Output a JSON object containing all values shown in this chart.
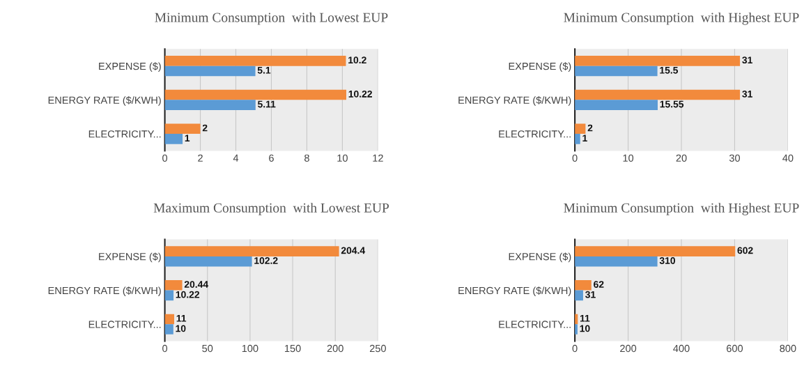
{
  "chart_data": [
    {
      "type": "bar",
      "title": "Minimum Consumption  with Lowest EUP",
      "orientation": "horizontal",
      "categories": [
        "EXPENSE ($)",
        "ENERGY RATE ($/KWH)",
        "ELECTRICITY..."
      ],
      "series": [
        {
          "color": "#f28a3c",
          "values": [
            10.2,
            10.22,
            2
          ]
        },
        {
          "color": "#5b9bd5",
          "values": [
            5.1,
            5.11,
            1
          ]
        }
      ],
      "xlim": [
        0,
        12
      ],
      "xticks": [
        0,
        2,
        4,
        6,
        8,
        10,
        12
      ],
      "grid": "x",
      "data_labels": true,
      "legend": false
    },
    {
      "type": "bar",
      "title": "Minimum Consumption  with Highest EUP",
      "orientation": "horizontal",
      "categories": [
        "EXPENSE ($)",
        "ENERGY RATE ($/KWH)",
        "ELECTRICITY..."
      ],
      "series": [
        {
          "color": "#f28a3c",
          "values": [
            31,
            31,
            2
          ]
        },
        {
          "color": "#5b9bd5",
          "values": [
            15.5,
            15.55,
            1
          ]
        }
      ],
      "xlim": [
        0,
        40
      ],
      "xticks": [
        0,
        10,
        20,
        30,
        40
      ],
      "grid": "x",
      "data_labels": true,
      "legend": false
    },
    {
      "type": "bar",
      "title": "Maximum Consumption  with Lowest EUP",
      "orientation": "horizontal",
      "categories": [
        "EXPENSE ($)",
        "ENERGY RATE ($/KWH)",
        "ELECTRICITY..."
      ],
      "series": [
        {
          "color": "#f28a3c",
          "values": [
            204.4,
            20.44,
            11
          ]
        },
        {
          "color": "#5b9bd5",
          "values": [
            102.2,
            10.22,
            10
          ]
        }
      ],
      "xlim": [
        0,
        250
      ],
      "xticks": [
        0,
        50,
        100,
        150,
        200,
        250
      ],
      "grid": "x",
      "data_labels": true,
      "legend": false
    },
    {
      "type": "bar",
      "title": "Minimum Consumption  with Highest EUP",
      "orientation": "horizontal",
      "categories": [
        "EXPENSE ($)",
        "ENERGY RATE ($/KWH)",
        "ELECTRICITY..."
      ],
      "series": [
        {
          "color": "#f28a3c",
          "values": [
            602,
            62,
            11
          ]
        },
        {
          "color": "#5b9bd5",
          "values": [
            310,
            31,
            10
          ]
        }
      ],
      "xlim": [
        0,
        800
      ],
      "xticks": [
        0,
        200,
        400,
        600,
        800
      ],
      "grid": "x",
      "data_labels": true,
      "legend": false
    }
  ]
}
